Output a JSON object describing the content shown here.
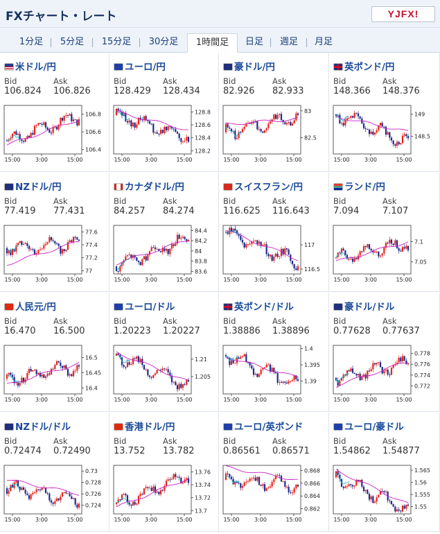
{
  "header": {
    "title": "FXチャート・レート",
    "logo_text": "YJFX!"
  },
  "tabs": [
    {
      "label": "1分足",
      "active": false
    },
    {
      "label": "5分足",
      "active": false
    },
    {
      "label": "15分足",
      "active": false
    },
    {
      "label": "30分足",
      "active": false
    },
    {
      "label": "1時間足",
      "active": true
    },
    {
      "label": "日足",
      "active": false
    },
    {
      "label": "週足",
      "active": false
    },
    {
      "label": "月足",
      "active": false
    }
  ],
  "labels": {
    "bid": "Bid",
    "ask": "Ask"
  },
  "pairs": [
    {
      "name": "米ドル/円",
      "bid": "106.824",
      "ask": "106.826",
      "flag": "us",
      "ticks": [
        "106.8",
        "106.6",
        "106.4"
      ],
      "xticks": [
        "15:00",
        "3:00",
        "15:00"
      ],
      "chart_data": {
        "type": "candlestick",
        "ylim": [
          106.35,
          106.9
        ],
        "start": 106.5,
        "end": 106.78,
        "ma_start": 106.45,
        "ma_end": 106.74
      }
    },
    {
      "name": "ユーロ/円",
      "bid": "128.429",
      "ask": "128.434",
      "flag": "eu",
      "ticks": [
        "128.8",
        "128.6",
        "128.4",
        "128.2"
      ],
      "xticks": [
        "15:00",
        "3:00",
        "15:00"
      ],
      "chart_data": {
        "type": "candlestick",
        "ylim": [
          128.15,
          128.9
        ],
        "start": 128.75,
        "end": 128.42,
        "ma_start": 128.8,
        "ma_end": 128.52
      }
    },
    {
      "name": "豪ドル/円",
      "bid": "82.926",
      "ask": "82.933",
      "flag": "au",
      "ticks": [
        "83",
        "82.5"
      ],
      "xticks": [
        "15:00",
        "3:00",
        "15:00"
      ],
      "chart_data": {
        "type": "candlestick",
        "ylim": [
          82.2,
          83.1
        ],
        "start": 82.6,
        "end": 82.9,
        "ma_start": 82.75,
        "ma_end": 82.85
      }
    },
    {
      "name": "英ポンド/円",
      "bid": "148.366",
      "ask": "148.376",
      "flag": "gb",
      "ticks": [
        "149",
        "148.5"
      ],
      "xticks": [
        "15:00",
        "3:00",
        "15:00"
      ],
      "chart_data": {
        "type": "candlestick",
        "ylim": [
          148.1,
          149.2
        ],
        "start": 149.0,
        "end": 148.35,
        "ma_start": 148.95,
        "ma_end": 148.6
      }
    },
    {
      "name": "NZドル/円",
      "bid": "77.419",
      "ask": "77.431",
      "flag": "nz",
      "ticks": [
        "77.6",
        "77.4",
        "77.2",
        "77"
      ],
      "xticks": [
        "15:00",
        "3:00",
        "15:00"
      ],
      "chart_data": {
        "type": "candlestick",
        "ylim": [
          76.95,
          77.7
        ],
        "start": 77.35,
        "end": 77.42,
        "ma_start": 77.1,
        "ma_end": 77.45
      }
    },
    {
      "name": "カナダドル/円",
      "bid": "84.257",
      "ask": "84.274",
      "flag": "ca",
      "ticks": [
        "84.4",
        "84.2",
        "84",
        "83.8",
        "83.6"
      ],
      "xticks": [
        "15:00",
        "3:00",
        "15:00"
      ],
      "chart_data": {
        "type": "candlestick",
        "ylim": [
          83.55,
          84.5
        ],
        "start": 83.7,
        "end": 84.25,
        "ma_start": 83.75,
        "ma_end": 84.22
      }
    },
    {
      "name": "スイスフラン/円",
      "bid": "116.625",
      "ask": "116.643",
      "flag": "ch",
      "ticks": [
        "117",
        "116.5"
      ],
      "xticks": [
        "15:00",
        "3:00",
        "15:00"
      ],
      "chart_data": {
        "type": "candlestick",
        "ylim": [
          116.4,
          117.4
        ],
        "start": 117.25,
        "end": 116.63,
        "ma_start": 117.3,
        "ma_end": 116.7
      }
    },
    {
      "name": "ランド/円",
      "bid": "7.094",
      "ask": "7.107",
      "flag": "za",
      "ticks": [
        "7.1",
        "7.05"
      ],
      "xticks": [
        "15:00",
        "3:00",
        "15:00"
      ],
      "chart_data": {
        "type": "candlestick",
        "ylim": [
          7.02,
          7.14
        ],
        "start": 7.06,
        "end": 7.095,
        "ma_start": 7.05,
        "ma_end": 7.1
      }
    },
    {
      "name": "人民元/円",
      "bid": "16.470",
      "ask": "16.500",
      "flag": "cn",
      "ticks": [
        "16.5",
        "16.45",
        "16.4"
      ],
      "xticks": [
        "15:00",
        "3:00",
        "15:00"
      ],
      "chart_data": {
        "type": "candlestick",
        "ylim": [
          16.38,
          16.54
        ],
        "start": 16.43,
        "end": 16.47,
        "ma_start": 16.41,
        "ma_end": 16.48
      }
    },
    {
      "name": "ユーロ/ドル",
      "bid": "1.20223",
      "ask": "1.20227",
      "flag": "eu",
      "ticks": [
        "1.21",
        "1.205"
      ],
      "xticks": [
        "15:00",
        "3:00",
        "15:00"
      ],
      "chart_data": {
        "type": "candlestick",
        "ylim": [
          1.2,
          1.214
        ],
        "start": 1.211,
        "end": 1.2022,
        "ma_start": 1.212,
        "ma_end": 1.2035
      }
    },
    {
      "name": "英ポンド/ドル",
      "bid": "1.38886",
      "ask": "1.38896",
      "flag": "gb",
      "ticks": [
        "1.4",
        "1.395",
        "1.39"
      ],
      "xticks": [
        "15:00",
        "3:00",
        "15:00"
      ],
      "chart_data": {
        "type": "candlestick",
        "ylim": [
          1.386,
          1.401
        ],
        "start": 1.398,
        "end": 1.3888,
        "ma_start": 1.3975,
        "ma_end": 1.391
      }
    },
    {
      "name": "豪ドル/ドル",
      "bid": "0.77628",
      "ask": "0.77637",
      "flag": "au",
      "ticks": [
        "0.778",
        "0.776",
        "0.774",
        "0.772"
      ],
      "xticks": [
        "15:00",
        "3:00",
        "15:00"
      ],
      "chart_data": {
        "type": "candlestick",
        "ylim": [
          0.7705,
          0.7795
        ],
        "start": 0.7735,
        "end": 0.7762,
        "ma_start": 0.772,
        "ma_end": 0.7765
      }
    },
    {
      "name": "NZドル/ドル",
      "bid": "0.72474",
      "ask": "0.72490",
      "flag": "nz",
      "ticks": [
        "0.73",
        "0.728",
        "0.726",
        "0.724"
      ],
      "xticks": [
        "15:00",
        "3:00",
        "15:00"
      ],
      "chart_data": {
        "type": "candlestick",
        "ylim": [
          0.7225,
          0.731
        ],
        "start": 0.727,
        "end": 0.7248,
        "ma_start": 0.7285,
        "ma_end": 0.726
      }
    },
    {
      "name": "香港ドル/円",
      "bid": "13.752",
      "ask": "13.782",
      "flag": "hk",
      "ticks": [
        "13.76",
        "13.74",
        "13.72",
        "13.7"
      ],
      "xticks": [
        "15:00",
        "3:00",
        "15:00"
      ],
      "chart_data": {
        "type": "candlestick",
        "ylim": [
          13.695,
          13.77
        ],
        "start": 13.71,
        "end": 13.755,
        "ma_start": 13.705,
        "ma_end": 13.75
      }
    },
    {
      "name": "ユーロ/英ポンド",
      "bid": "0.86561",
      "ask": "0.86571",
      "flag": "eu",
      "ticks": [
        "0.868",
        "0.866",
        "0.864",
        "0.862"
      ],
      "xticks": [
        "15:00",
        "3:00",
        "15:00"
      ],
      "chart_data": {
        "type": "candlestick",
        "ylim": [
          0.8612,
          0.8688
        ],
        "start": 0.8665,
        "end": 0.8657,
        "ma_start": 0.8685,
        "ma_end": 0.8665
      }
    },
    {
      "name": "ユーロ/豪ドル",
      "bid": "1.54862",
      "ask": "1.54877",
      "flag": "eu",
      "ticks": [
        "1.565",
        "1.56",
        "1.555",
        "1.55"
      ],
      "xticks": [
        "15:00",
        "3:00",
        "15:00"
      ],
      "chart_data": {
        "type": "candlestick",
        "ylim": [
          1.547,
          1.567
        ],
        "start": 1.562,
        "end": 1.5486,
        "ma_start": 1.565,
        "ma_end": 1.551
      }
    }
  ],
  "colors": {
    "up": "#e8221b",
    "down": "#1f2b8c",
    "ma": "#c81ec8",
    "ma2": "#22b0c8",
    "title": "#1a3561",
    "link": "#1a4a9a"
  }
}
